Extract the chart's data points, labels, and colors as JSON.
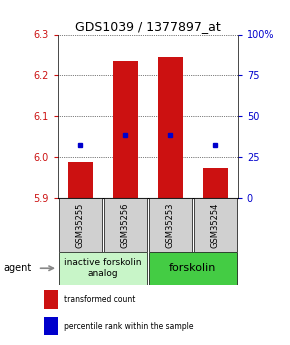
{
  "title": "GDS1039 / 1377897_at",
  "samples": [
    "GSM35255",
    "GSM35256",
    "GSM35253",
    "GSM35254"
  ],
  "bar_values": [
    5.99,
    6.235,
    6.245,
    5.975
  ],
  "bar_bottom": 5.9,
  "percentile_values": [
    6.03,
    6.055,
    6.055,
    6.03
  ],
  "ylim": [
    5.9,
    6.3
  ],
  "yticks_left": [
    5.9,
    6.0,
    6.1,
    6.2,
    6.3
  ],
  "yticks_right_vals": [
    5.9,
    6.0,
    6.1,
    6.2,
    6.3
  ],
  "yticks_right_labels": [
    "0",
    "25",
    "50",
    "75",
    "100%"
  ],
  "bar_color": "#cc1111",
  "blue_color": "#0000cc",
  "group1_label": "inactive forskolin\nanalog",
  "group2_label": "forskolin",
  "group1_color": "#c8f5c8",
  "group2_color": "#44cc44",
  "agent_label": "agent",
  "legend_red": "transformed count",
  "legend_blue": "percentile rank within the sample",
  "title_fontsize": 9,
  "ylabel_fontsize": 7,
  "group_fontsize": 6.5,
  "sample_fontsize": 6,
  "bar_width": 0.55,
  "label_gray": "#d0d0d0"
}
